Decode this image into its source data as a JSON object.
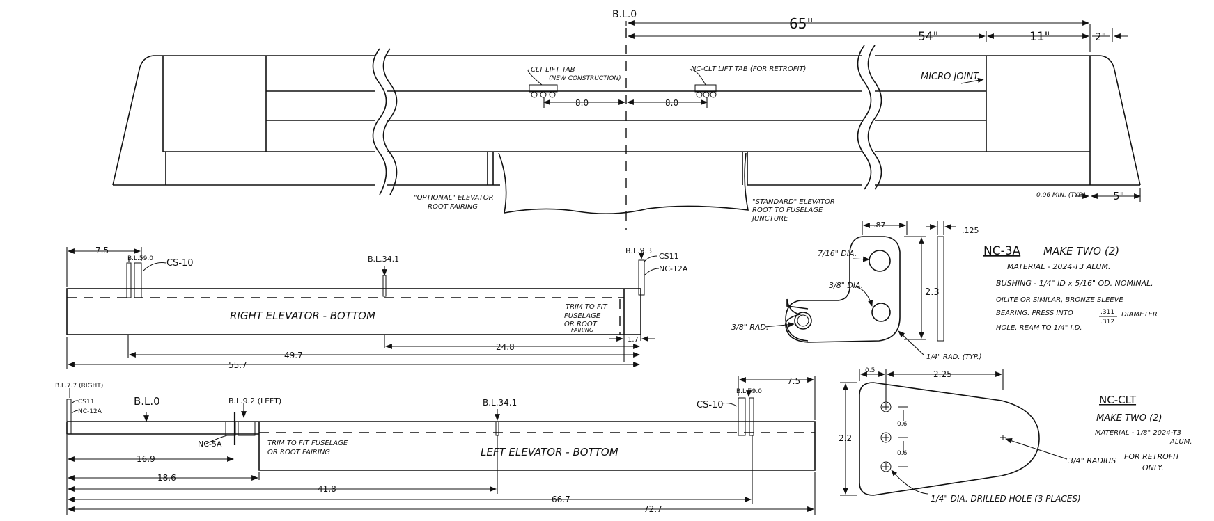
{
  "top_view": {
    "bl0": "B.L.0",
    "span_65": "65\"",
    "span_54": "54\"",
    "span_11": "11\"",
    "span_2": "2\"",
    "span_5": "5\"",
    "min_note": "0.06 MIN. (TYP.)",
    "clt_tab": "CLT LIFT TAB",
    "clt_tab_sub": "(NEW CONSTRUCTION)",
    "ncclt_tab": "NC-CLT LIFT TAB (FOR RETROFIT)",
    "micro_joint": "MICRO JOINT",
    "dim_8_left": "8.0",
    "dim_8_right": "8.0",
    "optional_fairing_1": "\"OPTIONAL\" ELEVATOR",
    "optional_fairing_2": "ROOT FAIRING",
    "standard_1": "\"STANDARD\" ELEVATOR",
    "standard_2": "ROOT TO FUSELAGE",
    "standard_3": "JUNCTURE"
  },
  "right_elevator": {
    "title": "RIGHT ELEVATOR - BOTTOM",
    "dim_7_5": "7.5",
    "bl_59": "B.L.59.0",
    "cs10": "CS-10",
    "bl_34": "B.L.34.1",
    "bl_9_3": "B.L.9.3",
    "cs11": "CS11",
    "nc12a": "NC-12A",
    "trim_1": "TRIM TO FIT",
    "trim_2": "FUSELAGE",
    "trim_3": "OR ROOT",
    "trim_4": "FAIRING",
    "dim_1_7": "1.7",
    "dim_24_8": "24.8",
    "dim_49_7": "49.7",
    "dim_55_7": "55.7"
  },
  "left_elevator": {
    "title": "LEFT ELEVATOR - BOTTOM",
    "bl_7_7": "B.L.7.7 (RIGHT)",
    "cs11": "CS11",
    "nc12a": "NC-12A",
    "bl0": "B.L.0",
    "bl_9_2": "B.L.9.2 (LEFT)",
    "nc5a": "NC-5A",
    "bl_34": "B.L.34.1",
    "cs10": "CS-10",
    "bl_59": "B.L.59.0",
    "dim_7_5": "7.5",
    "trim_1": "TRIM TO FIT FUSELAGE",
    "trim_2": "OR ROOT FAIRING",
    "dim_16_9": "16.9",
    "dim_18_6": "18.6",
    "dim_41_8": "41.8",
    "dim_66_7": "66.7",
    "dim_72_7": "72.7"
  },
  "nc3a_part": {
    "dim_87": ".87",
    "dim_125": ".125",
    "hole_7_16": "7/16\" DIA.",
    "hole_3_8": "3/8\" DIA.",
    "rad_3_8": "3/8\" RAD.",
    "dim_2_3": "2.3",
    "rad_1_4": "1/4\" RAD. (TYP.)",
    "title": "NC-3A",
    "make": "MAKE TWO (2)",
    "note_1": "MATERIAL - 2024-T3 ALUM.",
    "note_2": "BUSHING - 1/4\" ID x 5/16\" OD. NOMINAL.",
    "note_3": "OILITE OR SIMILAR, BRONZE SLEEVE",
    "note_4a": "BEARING. PRESS INTO",
    "note_4b": ".311",
    "note_4c": ".312",
    "note_4d": "DIAMETER",
    "note_5": "HOLE. REAM TO 1/4\" I.D."
  },
  "ncclt_part": {
    "dim_0_5": "0.5",
    "dim_2_25": "2.25",
    "dim_2_2": "2.2",
    "dim_0_6a": "0.6",
    "dim_0_6b": "0.6",
    "radius": "3/4\" RADIUS",
    "holes": "1/4\" DIA. DRILLED HOLE (3 PLACES)",
    "title": "NC-CLT",
    "make": "MAKE TWO (2)",
    "material_1": "MATERIAL - 1/8\" 2024-T3",
    "material_2": "ALUM.",
    "retro_1": "FOR RETROFIT",
    "retro_2": "ONLY."
  }
}
